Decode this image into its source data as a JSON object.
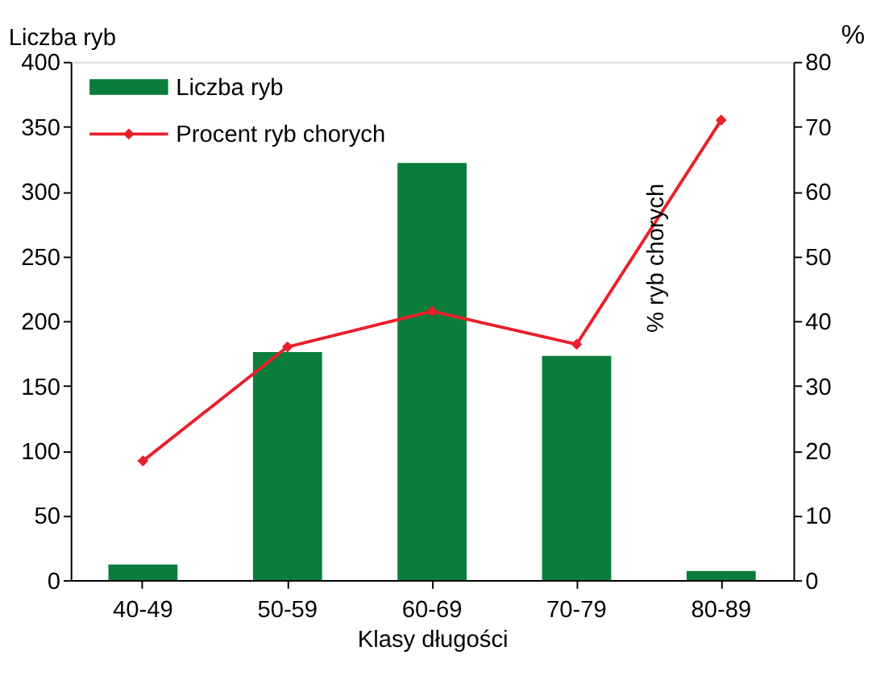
{
  "chart_data": {
    "type": "bar",
    "xlabel": "Klasy długości",
    "ylabel": "Liczba ryb",
    "y2label": "%",
    "categories": [
      "40-49",
      "50-59",
      "60-69",
      "70-79",
      "80-89"
    ],
    "series": [
      {
        "name": "Liczba ryb",
        "color": "#0a7d3c",
        "values": [
          12,
          176,
          322,
          173,
          7
        ]
      },
      {
        "name": "Procent ryb chorych",
        "type": "line",
        "axis": "y2",
        "color": "#e8202a",
        "marker": "diamond",
        "values": [
          18.4,
          36,
          41.5,
          36.4,
          71
        ]
      }
    ],
    "ylim": [
      0,
      400
    ],
    "yticks": [
      0,
      50,
      100,
      150,
      200,
      250,
      300,
      350,
      400
    ],
    "y2lim": [
      0,
      80
    ],
    "y2ticks": [
      0,
      10,
      20,
      30,
      40,
      50,
      60,
      70,
      80
    ],
    "annotations": [
      "% ryb chorych"
    ],
    "legend": "top left",
    "grid": false
  }
}
